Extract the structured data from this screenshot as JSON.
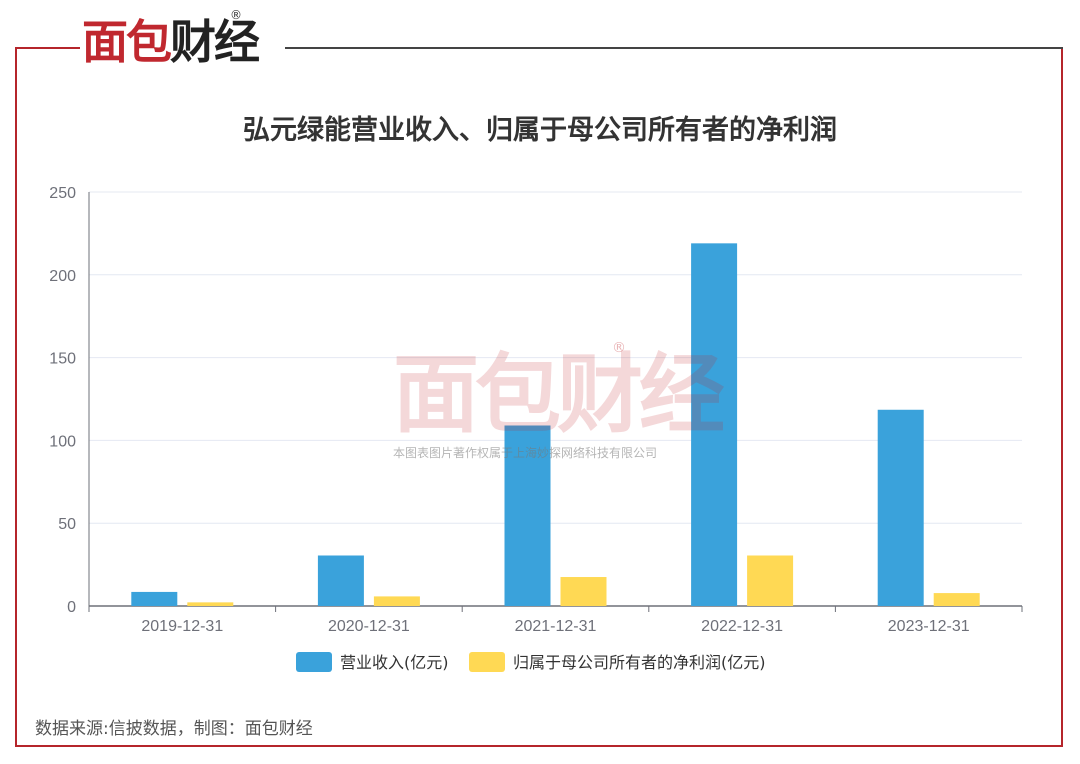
{
  "logo": {
    "part1": "面包",
    "part2": "财经",
    "reg": "®"
  },
  "watermark": {
    "logo": "面包财经",
    "reg": "®",
    "text": "本图表图片著作权属于上海妙探网络科技有限公司"
  },
  "source": "数据来源:信披数据，制图：面包财经",
  "colors": {
    "frame": "#b5252b",
    "series1": "#3aa2db",
    "series2": "#ffd954",
    "grid": "#e4e8f2",
    "axis": "#6e7079"
  },
  "chart_data": {
    "type": "bar",
    "title": "弘元绿能营业收入、归属于母公司所有者的净利润",
    "categories": [
      "2019-12-31",
      "2020-12-31",
      "2021-12-31",
      "2022-12-31",
      "2023-12-31"
    ],
    "series": [
      {
        "name": "营业收入(亿元)",
        "values": [
          8.5,
          30.5,
          109,
          219,
          118.5
        ]
      },
      {
        "name": "归属于母公司所有者的净利润(亿元)",
        "values": [
          2.2,
          5.8,
          17.5,
          30.5,
          7.8
        ]
      }
    ],
    "ylim": [
      0,
      250
    ],
    "yticks": [
      "0",
      "50",
      "100",
      "150",
      "200",
      "250"
    ],
    "grid": true,
    "legend": "bottom-center"
  }
}
